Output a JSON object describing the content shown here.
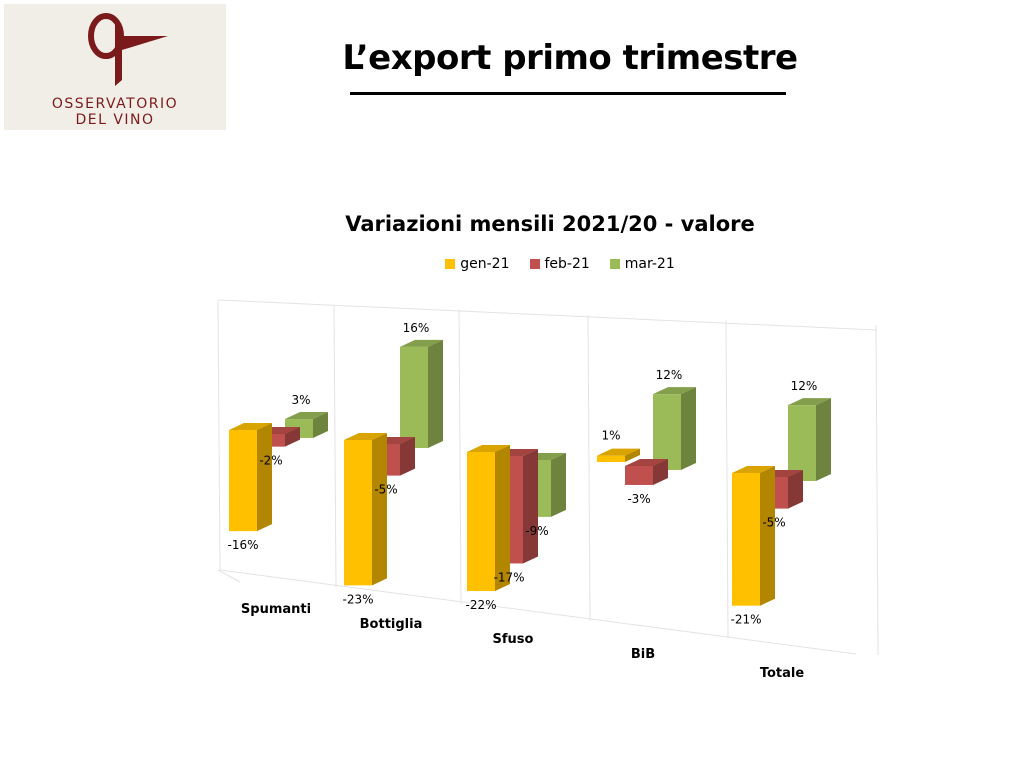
{
  "logo": {
    "line1": "OSSERVATORIO",
    "line2": "DEL VINO",
    "color": "#7b1a1a"
  },
  "slide_title": "L’export primo trimestre",
  "chart_data": {
    "type": "bar",
    "title": "Variazioni mensili 2021/20 - valore",
    "categories": [
      "Spumanti",
      "Bottiglia",
      "Sfuso",
      "BiB",
      "Totale"
    ],
    "series": [
      {
        "name": "gen-21",
        "color": "#ffc000",
        "values": [
          -16,
          -23,
          -22,
          1,
          -21
        ],
        "labels": [
          "-16%",
          "-23%",
          "-22%",
          "1%",
          "-21%"
        ]
      },
      {
        "name": "feb-21",
        "color": "#c0504d",
        "values": [
          -2,
          -5,
          -17,
          -3,
          -5
        ],
        "labels": [
          "-2%",
          "-5%",
          "-17%",
          "-3%",
          "-5%"
        ]
      },
      {
        "name": "mar-21",
        "color": "#9bbb59",
        "values": [
          3,
          16,
          -9,
          12,
          12
        ],
        "labels": [
          "3%",
          "16%",
          "-9%",
          "12%",
          "12%"
        ]
      }
    ],
    "legend": "top",
    "grid": false
  }
}
